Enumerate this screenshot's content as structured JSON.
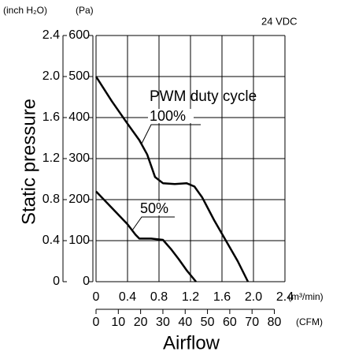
{
  "chart_data": {
    "type": "line",
    "y_unit_label": "(inch H₂O)",
    "y2_unit_label": "(Pa)",
    "note": "24 VDC",
    "ylabel": "Static pressure",
    "xlabel": "Airflow",
    "x_unit_label": "(m³/min)",
    "x2_unit_label": "(CFM)",
    "legend_title": "PWM duty cycle",
    "xlim": [
      0,
      2.4
    ],
    "xticks": [
      0,
      0.4,
      0.8,
      1.2,
      1.6,
      {
        "value": 2,
        "label": "2.0"
      },
      2.4
    ],
    "x2lim": [
      0,
      84.76
    ],
    "x2ticks": [
      0,
      10,
      20,
      30,
      40,
      50,
      60,
      70,
      80
    ],
    "ylim": [
      0,
      600
    ],
    "yticks": [
      0,
      100,
      200,
      300,
      400,
      500,
      600
    ],
    "y2lim": [
      0,
      2.4
    ],
    "y2ticks": [
      0,
      0.4,
      0.8,
      1.2,
      1.6,
      {
        "value": 2,
        "label": "2.0"
      },
      2.4
    ],
    "grid": true,
    "series": [
      {
        "name": "100%",
        "color": "#000000",
        "x": [
          0,
          0.2,
          0.4,
          0.55,
          0.65,
          0.75,
          0.85,
          1.0,
          1.15,
          1.25,
          1.35,
          1.5,
          1.65,
          1.8,
          1.93
        ],
        "values": [
          500,
          440,
          385,
          345,
          310,
          255,
          240,
          238,
          240,
          232,
          205,
          150,
          100,
          50,
          0
        ]
      },
      {
        "name": "50%",
        "color": "#000000",
        "x": [
          0,
          0.2,
          0.4,
          0.5,
          0.55,
          0.7,
          0.85,
          0.95,
          1.05,
          1.15,
          1.27
        ],
        "values": [
          220,
          180,
          140,
          115,
          105,
          105,
          102,
          80,
          55,
          28,
          0
        ]
      }
    ]
  }
}
